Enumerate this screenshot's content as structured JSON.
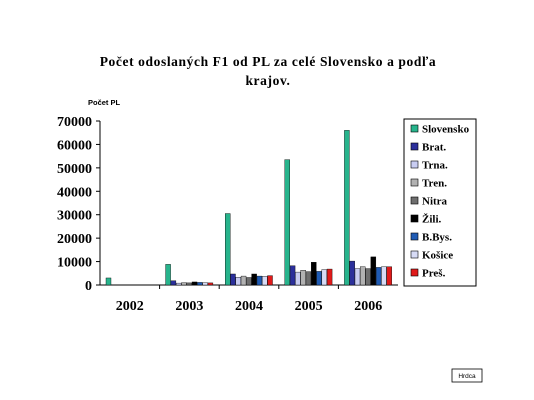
{
  "note_box": "Hrdca",
  "colors": {
    "Slovensko": "#27b48c",
    "Brat.": "#2b2f9b",
    "Trna.": "#c9cdf2",
    "Tren.": "#b2b2b2",
    "Nitra": "#6e6e6e",
    "Žili.": "#000000",
    "B.Bys.": "#1f5bb4",
    "Košice": "#d7dbf5",
    "Preš.": "#e01a1a"
  },
  "chart_data": {
    "type": "bar",
    "title_lines": [
      "Počet odoslaných F1 od PL za celé Slovensko a podľa",
      "krajov."
    ],
    "xlabel": "",
    "ylabel": "Počet PL",
    "ylim": [
      0,
      70000
    ],
    "yticks": [
      0,
      10000,
      20000,
      30000,
      40000,
      50000,
      60000,
      70000
    ],
    "grid": false,
    "legend_position": "right",
    "categories": [
      "2002",
      "2003",
      "2004",
      "2005",
      "2006"
    ],
    "series": [
      {
        "name": "Slovensko",
        "values": [
          3000,
          8800,
          30500,
          53500,
          66000
        ]
      },
      {
        "name": "Brat.",
        "values": [
          0,
          1800,
          4700,
          8200,
          10200
        ]
      },
      {
        "name": "Trna.",
        "values": [
          0,
          800,
          3300,
          5500,
          7000
        ]
      },
      {
        "name": "Tren.",
        "values": [
          0,
          1000,
          3800,
          6300,
          7800
        ]
      },
      {
        "name": "Nitra",
        "values": [
          0,
          900,
          3200,
          5700,
          7000
        ]
      },
      {
        "name": "Žili.",
        "values": [
          0,
          1300,
          4700,
          9700,
          12000
        ]
      },
      {
        "name": "B.Bys.",
        "values": [
          0,
          1100,
          3800,
          5800,
          7500
        ]
      },
      {
        "name": "Košice",
        "values": [
          0,
          1000,
          3700,
          6600,
          7800
        ]
      },
      {
        "name": "Preš.",
        "values": [
          0,
          900,
          4000,
          6800,
          7800
        ]
      }
    ]
  }
}
